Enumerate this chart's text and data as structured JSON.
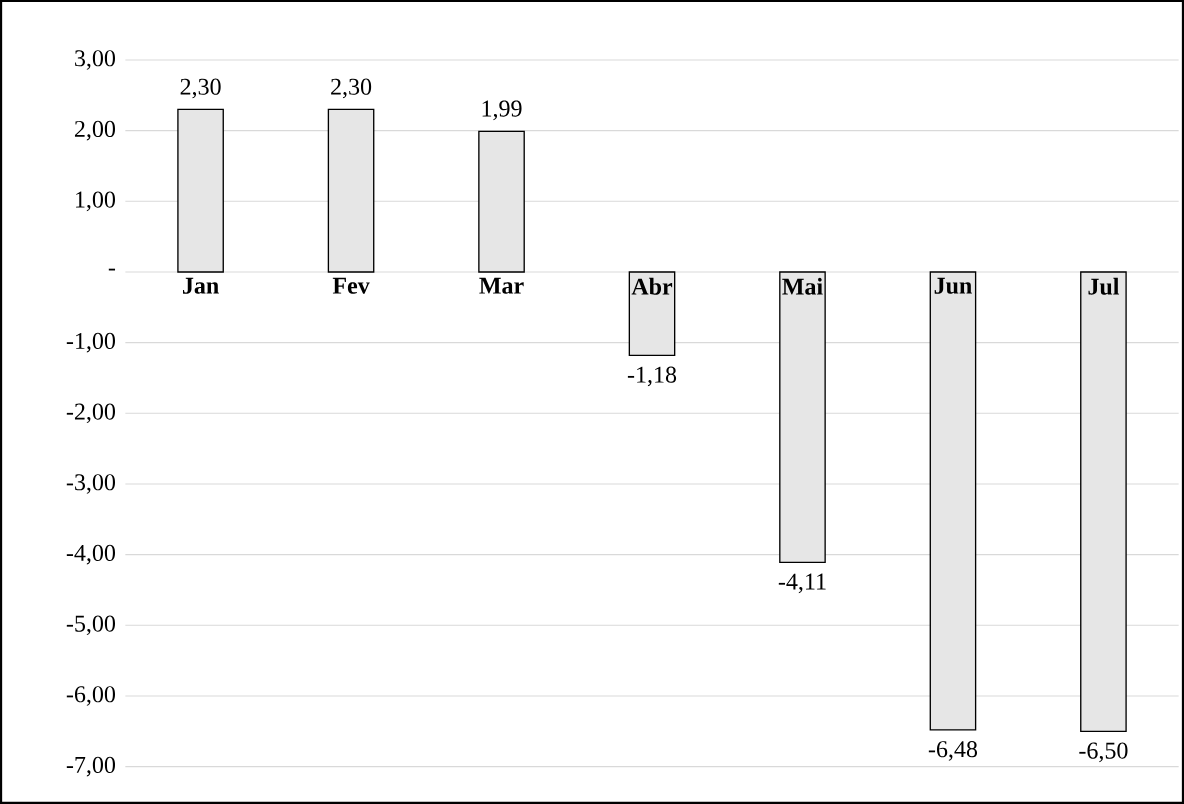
{
  "chart_data": {
    "type": "bar",
    "categories": [
      "Jan",
      "Fev",
      "Mar",
      "Abr",
      "Mai",
      "Jun",
      "Jul"
    ],
    "values": [
      2.3,
      2.3,
      1.99,
      -1.18,
      -4.11,
      -6.48,
      -6.5
    ],
    "value_labels": [
      "2,30",
      "2,30",
      "1,99",
      "-1,18",
      "-4,11",
      "-6,48",
      "-6,50"
    ],
    "color": "#e6e6e6",
    "ylim": [
      -7,
      3
    ],
    "yticks": [
      {
        "value": 3,
        "label": "3,00"
      },
      {
        "value": 2,
        "label": "2,00"
      },
      {
        "value": 1,
        "label": "1,00"
      },
      {
        "value": 0,
        "label": "-"
      },
      {
        "value": -1,
        "label": "-1,00"
      },
      {
        "value": -2,
        "label": "-2,00"
      },
      {
        "value": -3,
        "label": "-3,00"
      },
      {
        "value": -4,
        "label": "-4,00"
      },
      {
        "value": -5,
        "label": "-5,00"
      },
      {
        "value": -6,
        "label": "-6,00"
      },
      {
        "value": -7,
        "label": "-7,00"
      }
    ],
    "grid": "y"
  }
}
